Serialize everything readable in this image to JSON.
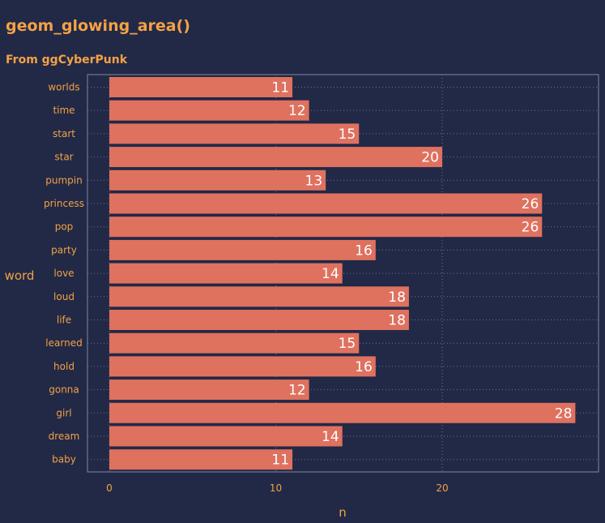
{
  "chart_data": {
    "type": "bar",
    "orientation": "horizontal",
    "title": "geom_glowing_area()",
    "subtitle": "From ggCyberPunk",
    "xlabel": "n",
    "ylabel": "word",
    "categories": [
      "worlds",
      "time",
      "start",
      "star",
      "pumpin",
      "princess",
      "pop",
      "party",
      "love",
      "loud",
      "life",
      "learned",
      "hold",
      "gonna",
      "girl",
      "dream",
      "baby"
    ],
    "values": [
      11,
      12,
      15,
      20,
      13,
      26,
      26,
      16,
      14,
      18,
      18,
      15,
      16,
      12,
      28,
      14,
      11
    ],
    "x_ticks": [
      0,
      10,
      20
    ],
    "xlim": [
      0,
      29
    ],
    "grid": true,
    "legend": "none",
    "colors": {
      "background": "#212946",
      "bar": "#DF715F",
      "text": "#F5A145",
      "grid": "#6B7390",
      "panel_border": "#7F86A6",
      "data_label": "#FFFFFF"
    }
  }
}
